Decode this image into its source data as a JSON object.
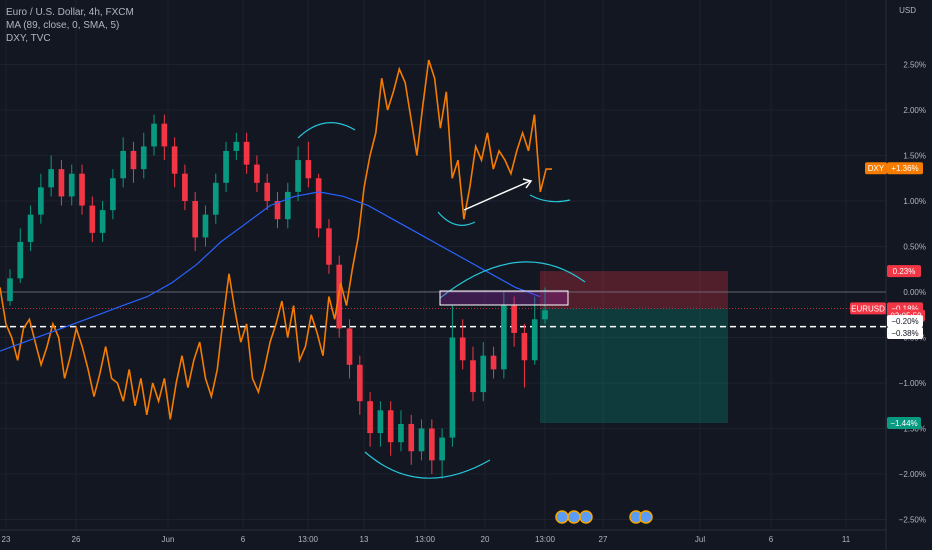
{
  "legend": {
    "symbol_line": "Euro / U.S. Dollar, 4h, FXCM",
    "ma_line": "MA (89, close, 0, SMA, 5)",
    "compare_line": "DXY, TVC"
  },
  "currency": "USD",
  "chart_data": {
    "type": "line",
    "title": "Euro / U.S. Dollar, 4h, FXCM",
    "xlabel": "",
    "ylabel": "",
    "y_unit": "%",
    "y_ticks": [
      "2.50%",
      "2.00%",
      "1.50%",
      "1.00%",
      "0.50%",
      "0.00%",
      "−0.50%",
      "−1.00%",
      "−1.50%",
      "−2.00%",
      "−2.50%"
    ],
    "y_tick_values": [
      2.5,
      2.0,
      1.5,
      1.0,
      0.5,
      0.0,
      -0.5,
      -1.0,
      -1.5,
      -2.0,
      -2.5
    ],
    "ylim": [
      -2.6,
      2.95
    ],
    "x_ticks": [
      "23",
      "26",
      "Jun",
      "6",
      "13:00",
      "13",
      "13:00",
      "20",
      "13:00",
      "27",
      "Jul",
      "6",
      "11"
    ],
    "series": [
      {
        "name": "DXY",
        "color": "#f57c00",
        "values": [
          0.05,
          -0.35,
          -0.5,
          -0.75,
          -0.4,
          -0.3,
          -0.55,
          -0.8,
          -0.6,
          -0.35,
          -0.5,
          -0.95,
          -0.7,
          -0.4,
          -0.6,
          -0.85,
          -1.15,
          -0.9,
          -0.6,
          -0.95,
          -1.0,
          -1.2,
          -0.85,
          -1.25,
          -0.95,
          -1.35,
          -1.0,
          -1.2,
          -0.95,
          -1.4,
          -1.0,
          -0.7,
          -1.05,
          -0.75,
          -0.55,
          -0.95,
          -1.15,
          -0.85,
          -0.3,
          0.2,
          -0.2,
          -0.55,
          -0.35,
          -0.95,
          -1.1,
          -0.85,
          -0.55,
          -0.35,
          -0.1,
          -0.5,
          -0.15,
          -0.75,
          -0.6,
          -0.25,
          -0.45,
          -0.7,
          -0.05,
          -0.3,
          0.1,
          -0.15,
          0.25,
          0.6,
          1.15,
          1.5,
          1.75,
          2.35,
          2.0,
          2.2,
          2.45,
          2.3,
          1.9,
          1.5,
          2.05,
          2.55,
          2.35,
          1.8,
          2.2,
          1.25,
          1.45,
          0.8,
          1.15,
          1.6,
          1.45,
          1.75,
          1.35,
          1.55,
          1.45,
          1.3,
          1.55,
          1.75,
          1.55,
          1.95,
          1.1,
          1.35,
          1.35
        ]
      },
      {
        "name": "MA (89, close, 0, SMA, 5)",
        "color": "#2962ff",
        "values": [
          -0.65,
          -0.55,
          -0.45,
          -0.35,
          -0.25,
          -0.15,
          -0.05,
          0.1,
          0.3,
          0.55,
          0.75,
          0.95,
          1.05,
          1.1,
          1.05,
          0.95,
          0.8,
          0.65,
          0.5,
          0.35,
          0.2,
          0.05,
          -0.05
        ]
      }
    ],
    "candles": [
      {
        "o": -0.1,
        "c": 0.15,
        "h": 0.25,
        "l": -0.15
      },
      {
        "o": 0.15,
        "c": 0.55,
        "h": 0.7,
        "l": 0.1
      },
      {
        "o": 0.55,
        "c": 0.85,
        "h": 0.95,
        "l": 0.45
      },
      {
        "o": 0.85,
        "c": 1.15,
        "h": 1.3,
        "l": 0.75
      },
      {
        "o": 1.15,
        "c": 1.35,
        "h": 1.5,
        "l": 1.05
      },
      {
        "o": 1.35,
        "c": 1.05,
        "h": 1.45,
        "l": 0.95
      },
      {
        "o": 1.05,
        "c": 1.3,
        "h": 1.4,
        "l": 0.95
      },
      {
        "o": 1.3,
        "c": 0.95,
        "h": 1.4,
        "l": 0.85
      },
      {
        "o": 0.95,
        "c": 0.65,
        "h": 1.05,
        "l": 0.55
      },
      {
        "o": 0.65,
        "c": 0.9,
        "h": 1.0,
        "l": 0.55
      },
      {
        "o": 0.9,
        "c": 1.25,
        "h": 1.35,
        "l": 0.8
      },
      {
        "o": 1.25,
        "c": 1.55,
        "h": 1.7,
        "l": 1.15
      },
      {
        "o": 1.55,
        "c": 1.35,
        "h": 1.65,
        "l": 1.2
      },
      {
        "o": 1.35,
        "c": 1.6,
        "h": 1.75,
        "l": 1.25
      },
      {
        "o": 1.6,
        "c": 1.85,
        "h": 1.95,
        "l": 1.5
      },
      {
        "o": 1.85,
        "c": 1.6,
        "h": 1.95,
        "l": 1.45
      },
      {
        "o": 1.6,
        "c": 1.3,
        "h": 1.7,
        "l": 1.15
      },
      {
        "o": 1.3,
        "c": 1.0,
        "h": 1.4,
        "l": 0.9
      },
      {
        "o": 1.0,
        "c": 0.6,
        "h": 1.1,
        "l": 0.45
      },
      {
        "o": 0.6,
        "c": 0.85,
        "h": 0.95,
        "l": 0.5
      },
      {
        "o": 0.85,
        "c": 1.2,
        "h": 1.3,
        "l": 0.75
      },
      {
        "o": 1.2,
        "c": 1.55,
        "h": 1.65,
        "l": 1.1
      },
      {
        "o": 1.55,
        "c": 1.65,
        "h": 1.75,
        "l": 1.45
      },
      {
        "o": 1.65,
        "c": 1.4,
        "h": 1.75,
        "l": 1.3
      },
      {
        "o": 1.4,
        "c": 1.2,
        "h": 1.5,
        "l": 1.1
      },
      {
        "o": 1.2,
        "c": 1.0,
        "h": 1.3,
        "l": 0.9
      },
      {
        "o": 1.0,
        "c": 0.8,
        "h": 1.1,
        "l": 0.7
      },
      {
        "o": 0.8,
        "c": 1.1,
        "h": 1.2,
        "l": 0.7
      },
      {
        "o": 1.1,
        "c": 1.45,
        "h": 1.6,
        "l": 1.0
      },
      {
        "o": 1.45,
        "c": 1.25,
        "h": 1.65,
        "l": 1.15
      },
      {
        "o": 1.25,
        "c": 0.7,
        "h": 1.3,
        "l": 0.6
      },
      {
        "o": 0.7,
        "c": 0.3,
        "h": 0.8,
        "l": 0.2
      },
      {
        "o": 0.3,
        "c": -0.4,
        "h": 0.4,
        "l": -0.5
      },
      {
        "o": -0.4,
        "c": -0.8,
        "h": -0.3,
        "l": -0.95
      },
      {
        "o": -0.8,
        "c": -1.2,
        "h": -0.7,
        "l": -1.35
      },
      {
        "o": -1.2,
        "c": -1.55,
        "h": -1.1,
        "l": -1.7
      },
      {
        "o": -1.55,
        "c": -1.3,
        "h": -1.2,
        "l": -1.7
      },
      {
        "o": -1.3,
        "c": -1.65,
        "h": -1.2,
        "l": -1.8
      },
      {
        "o": -1.65,
        "c": -1.45,
        "h": -1.3,
        "l": -1.75
      },
      {
        "o": -1.45,
        "c": -1.75,
        "h": -1.35,
        "l": -1.9
      },
      {
        "o": -1.75,
        "c": -1.5,
        "h": -1.4,
        "l": -1.85
      },
      {
        "o": -1.5,
        "c": -1.85,
        "h": -1.4,
        "l": -2.0
      },
      {
        "o": -1.85,
        "c": -1.6,
        "h": -1.5,
        "l": -2.05
      },
      {
        "o": -1.6,
        "c": -0.5,
        "h": -0.15,
        "l": -1.7
      },
      {
        "o": -0.5,
        "c": -0.75,
        "h": -0.3,
        "l": -0.85
      },
      {
        "o": -0.75,
        "c": -1.1,
        "h": -0.6,
        "l": -1.2
      },
      {
        "o": -1.1,
        "c": -0.7,
        "h": -0.55,
        "l": -1.2
      },
      {
        "o": -0.7,
        "c": -0.85,
        "h": -0.6,
        "l": -0.95
      },
      {
        "o": -0.85,
        "c": -0.15,
        "h": 0.0,
        "l": -0.95
      },
      {
        "o": -0.15,
        "c": -0.45,
        "h": -0.05,
        "l": -0.6
      },
      {
        "o": -0.45,
        "c": -0.75,
        "h": -0.35,
        "l": -1.05
      },
      {
        "o": -0.75,
        "c": -0.3,
        "h": -0.05,
        "l": -0.8
      },
      {
        "o": -0.3,
        "c": -0.2,
        "h": 0.05,
        "l": -0.35
      }
    ],
    "annotations": {
      "last_values": [
        {
          "label": "0.23%",
          "value": 0.23,
          "color": "#f23645"
        },
        {
          "label": "EURUSD",
          "value": -0.18,
          "color": "#f23645"
        },
        {
          "label": "−0.18%",
          "value": -0.18,
          "color": "#f23645"
        },
        {
          "label": "03:05:59",
          "value": -0.26,
          "color": "#f23645"
        },
        {
          "label": "−0.20%",
          "value": -0.32,
          "color": "#ffffff"
        },
        {
          "label": "−0.38%",
          "value": -0.45,
          "color": "#ffffff"
        },
        {
          "label": "DXY",
          "value": 1.36,
          "color": "#f57c00"
        },
        {
          "label": "+1.36%",
          "value": 1.36,
          "color": "#f57c00"
        },
        {
          "label": "−1.44%",
          "value": -1.44,
          "color": "#089981"
        }
      ],
      "dashed_level": -0.38,
      "zero_line": 0.0,
      "position_box": {
        "entry": -0.18,
        "stop": 0.23,
        "target": -1.44
      }
    }
  }
}
